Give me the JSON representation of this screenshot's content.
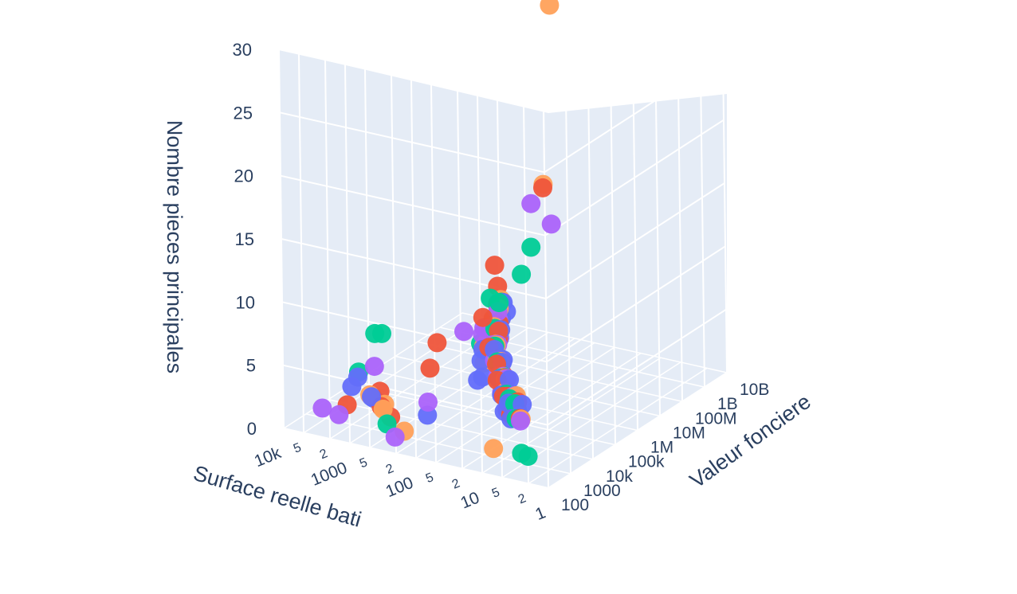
{
  "chart_data": {
    "type": "scatter",
    "dimensions": "3d",
    "grid": true,
    "legend": "none",
    "axes": {
      "x": {
        "label": "Surface reelle bati",
        "scale": "log",
        "ticks": [
          "1",
          "2",
          "5",
          "10",
          "2",
          "5",
          "100",
          "2",
          "5",
          "1000",
          "2",
          "5",
          "10k"
        ]
      },
      "y": {
        "label": "Valeur fonciere",
        "scale": "log",
        "ticks": [
          "100",
          "1000",
          "10k",
          "100k",
          "1M",
          "10M",
          "100M",
          "1B",
          "10B"
        ]
      },
      "z": {
        "label": "Nombre pieces principales",
        "scale": "linear",
        "ticks": [
          "0",
          "5",
          "10",
          "15",
          "20",
          "25",
          "30"
        ],
        "range": [
          0,
          30
        ]
      }
    },
    "colors": {
      "background": "#ffffff",
      "plane": "#e5ecf6",
      "grid": "#ffffff",
      "text": "#2a3f5f",
      "markers": [
        "#636efa",
        "#ef553b",
        "#00cc96",
        "#ab63fa",
        "#ffa15a"
      ]
    },
    "series": [
      {
        "color": "#636efa",
        "points": [
          [
            2000,
            1000,
            3
          ],
          [
            1500,
            800,
            4
          ],
          [
            1200,
            2000,
            2
          ],
          [
            800,
            500,
            3
          ],
          [
            250,
            5000,
            1
          ],
          [
            100,
            100000,
            3
          ],
          [
            120,
            150000,
            4
          ],
          [
            80,
            180000,
            5
          ],
          [
            70,
            300000,
            4
          ],
          [
            60,
            120000,
            3
          ],
          [
            50,
            90000,
            2
          ],
          [
            40,
            60000,
            1
          ],
          [
            30,
            40000,
            2
          ],
          [
            90,
            500000,
            6
          ],
          [
            110,
            800000,
            5
          ],
          [
            140,
            2000000,
            6
          ],
          [
            75,
            250000,
            3
          ],
          [
            65,
            220000,
            4
          ],
          [
            45,
            150000,
            3
          ],
          [
            150,
            3000000,
            7
          ],
          [
            95,
            400000,
            5
          ],
          [
            55,
            180000,
            2
          ],
          [
            35,
            120000,
            2
          ],
          [
            85,
            350000,
            4
          ],
          [
            130,
            1200000,
            5
          ],
          [
            160,
            5000000,
            6
          ],
          [
            25,
            30000,
            1
          ],
          [
            20,
            50000,
            2
          ],
          [
            180,
            600000,
            4
          ],
          [
            100,
            60000,
            3
          ]
        ]
      },
      {
        "color": "#ef553b",
        "points": [
          [
            3000,
            2000,
            1
          ],
          [
            800,
            1200,
            3
          ],
          [
            700,
            900,
            2
          ],
          [
            600,
            1500,
            1
          ],
          [
            120,
            800,
            6
          ],
          [
            100,
            1000,
            8
          ],
          [
            140,
            300000,
            7
          ],
          [
            100,
            200000,
            5
          ],
          [
            90,
            400000,
            6
          ],
          [
            70,
            150000,
            4
          ],
          [
            60,
            100000,
            3
          ],
          [
            45,
            80000,
            2
          ],
          [
            30,
            50000,
            1
          ],
          [
            200,
            4000000,
            8
          ],
          [
            120,
            1000000,
            6
          ],
          [
            110,
            700000,
            5
          ],
          [
            80,
            250000,
            4
          ],
          [
            65,
            230000,
            3
          ],
          [
            50,
            130000,
            2
          ],
          [
            160,
            2000000,
            7
          ],
          [
            95,
            350000,
            5
          ],
          [
            55,
            160000,
            3
          ],
          [
            40,
            90000,
            2
          ],
          [
            85,
            300000,
            4
          ],
          [
            130,
            900000,
            5
          ],
          [
            150,
            200000000,
            14
          ],
          [
            170,
            1500000,
            6
          ],
          [
            25,
            60000,
            2
          ],
          [
            20,
            40000,
            1
          ],
          [
            300,
            10000000,
            9
          ]
        ]
      },
      {
        "color": "#00cc96",
        "points": [
          [
            1800,
            1500,
            4
          ],
          [
            1200,
            2500,
            7
          ],
          [
            1000,
            3000,
            7
          ],
          [
            500,
            600,
            1
          ],
          [
            8,
            3000,
            0
          ],
          [
            6,
            2500,
            0
          ],
          [
            150,
            800000,
            8
          ],
          [
            110,
            500000,
            6
          ],
          [
            90,
            270000,
            5
          ],
          [
            75,
            200000,
            4
          ],
          [
            60,
            140000,
            3
          ],
          [
            45,
            110000,
            2
          ],
          [
            35,
            70000,
            2
          ],
          [
            100,
            600000,
            8
          ],
          [
            130,
            1100000,
            6
          ],
          [
            160,
            3000000,
            7
          ],
          [
            85,
            330000,
            4
          ],
          [
            65,
            210000,
            3
          ],
          [
            50,
            140000,
            2
          ],
          [
            145,
            50000000,
            10
          ],
          [
            95,
            380000,
            5
          ],
          [
            55,
            170000,
            3
          ],
          [
            30,
            100000,
            1
          ],
          [
            80,
            280000,
            4
          ],
          [
            120,
            800000,
            5
          ],
          [
            400,
            5000000,
            3
          ],
          [
            25,
            45000,
            2
          ],
          [
            22,
            35000,
            1
          ],
          [
            180,
            1300000,
            5
          ],
          [
            105,
            7000000,
            9
          ]
        ]
      },
      {
        "color": "#ab63fa",
        "points": [
          [
            5000,
            700,
            1
          ],
          [
            2500,
            500,
            1
          ],
          [
            900,
            1000,
            5
          ],
          [
            400,
            700,
            0
          ],
          [
            150,
            1200,
            3
          ],
          [
            130,
            400000,
            6
          ],
          [
            100,
            300000,
            5
          ],
          [
            85,
            220000,
            4
          ],
          [
            70,
            170000,
            3
          ],
          [
            55,
            120000,
            2
          ],
          [
            40,
            80000,
            1
          ],
          [
            30,
            55000,
            1
          ],
          [
            120,
            900000,
            7
          ],
          [
            140,
            1500000,
            6
          ],
          [
            170,
            2500000,
            7
          ],
          [
            90,
            360000,
            5
          ],
          [
            70,
            240000,
            4
          ],
          [
            50,
            160000,
            3
          ],
          [
            180,
            100000000,
            13
          ],
          [
            100,
            420000,
            5
          ],
          [
            60,
            190000,
            3
          ],
          [
            35,
            110000,
            2
          ],
          [
            80,
            260000,
            4
          ],
          [
            110,
            750000,
            5
          ],
          [
            130,
            300000000,
            11
          ],
          [
            600,
            3000000,
            4
          ],
          [
            200,
            800000,
            5
          ],
          [
            22,
            50000,
            1
          ],
          [
            18,
            30000,
            1
          ],
          [
            250,
            1800000,
            5
          ]
        ]
      },
      {
        "color": "#ffa15a",
        "points": [
          [
            900,
            600,
            3
          ],
          [
            700,
            1300,
            2
          ],
          [
            600,
            700,
            2
          ],
          [
            400,
            1800,
            0
          ],
          [
            20,
            2500,
            0
          ],
          [
            150,
            500000000,
            28
          ],
          [
            120,
            600000,
            6
          ],
          [
            95,
            350000,
            5
          ],
          [
            80,
            240000,
            4
          ],
          [
            65,
            180000,
            3
          ],
          [
            50,
            130000,
            2
          ],
          [
            38,
            90000,
            1
          ],
          [
            28,
            60000,
            1
          ],
          [
            130,
            1300000,
            7
          ],
          [
            160,
            2200000,
            6
          ],
          [
            180,
            4000000,
            7
          ],
          [
            90,
            310000,
            5
          ],
          [
            70,
            230000,
            4
          ],
          [
            52,
            150000,
            3
          ],
          [
            170,
            300000000,
            14
          ],
          [
            100,
            450000,
            5
          ],
          [
            58,
            170000,
            3
          ],
          [
            33,
            120000,
            2
          ],
          [
            75,
            270000,
            4
          ],
          [
            115,
            850000,
            5
          ],
          [
            350,
            6000000,
            3
          ],
          [
            280,
            2500000,
            2
          ],
          [
            24,
            55000,
            1
          ],
          [
            19,
            38000,
            1
          ],
          [
            200,
            900000,
            4
          ]
        ]
      }
    ]
  }
}
